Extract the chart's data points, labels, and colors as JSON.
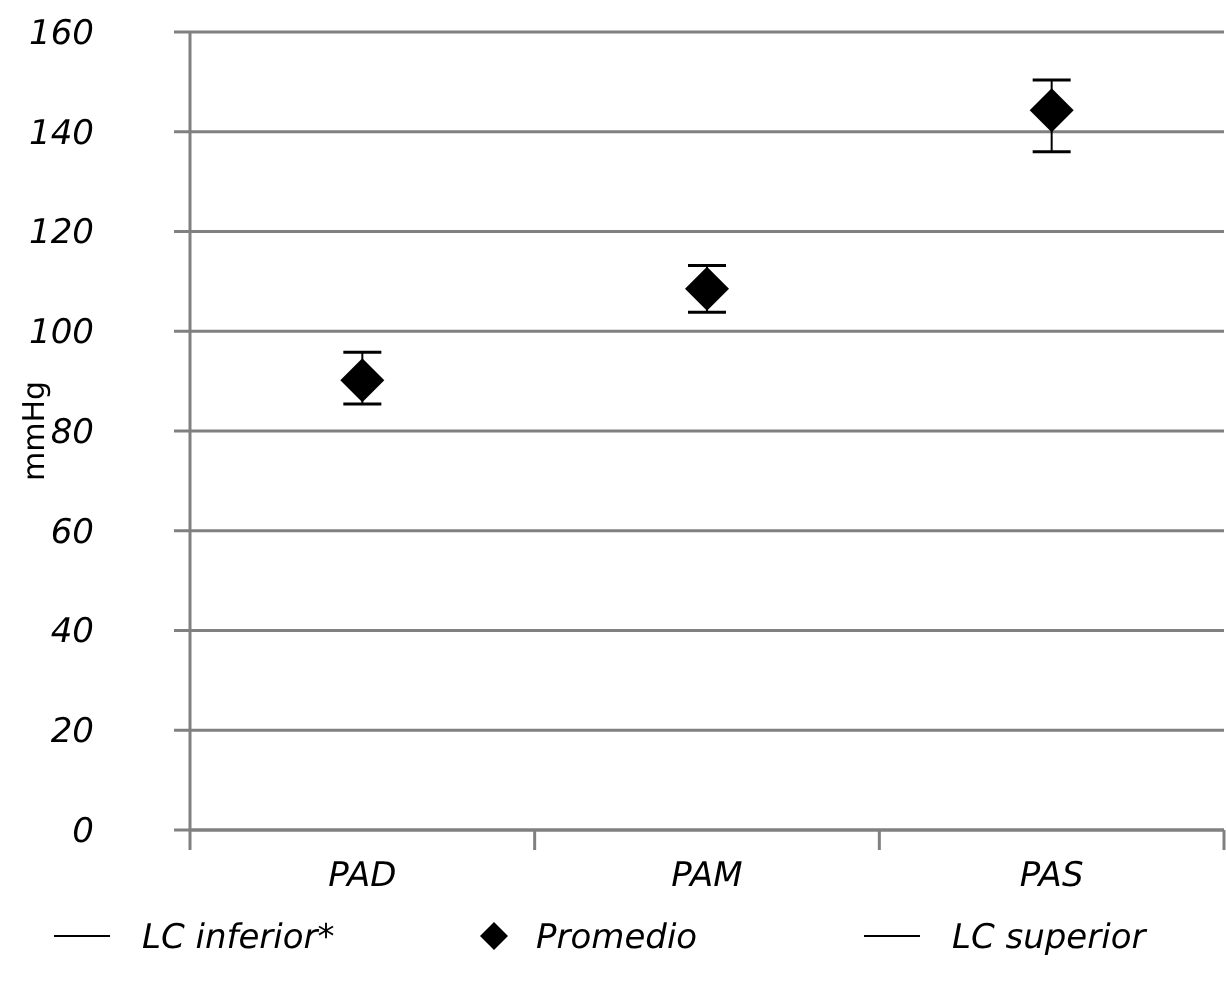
{
  "chart_data": {
    "type": "scatter",
    "ylabel": "mmHg",
    "categories": [
      "PAD",
      "PAM",
      "PAS"
    ],
    "ylim": [
      0,
      160
    ],
    "yticks": [
      0,
      20,
      40,
      60,
      80,
      100,
      120,
      140,
      160
    ],
    "grid": "y",
    "legend": "bottom",
    "marker": "diamond",
    "annotations": [
      "LC inferior*",
      "LC superior"
    ],
    "series": [
      {
        "name": "Promedio",
        "color": "#000000",
        "values": [
          90.2,
          108.5,
          144.3
        ],
        "errors": [
          [
            85.4,
            95.8
          ],
          [
            103.8,
            113.2
          ],
          [
            136,
            150.4
          ]
        ]
      }
    ]
  }
}
